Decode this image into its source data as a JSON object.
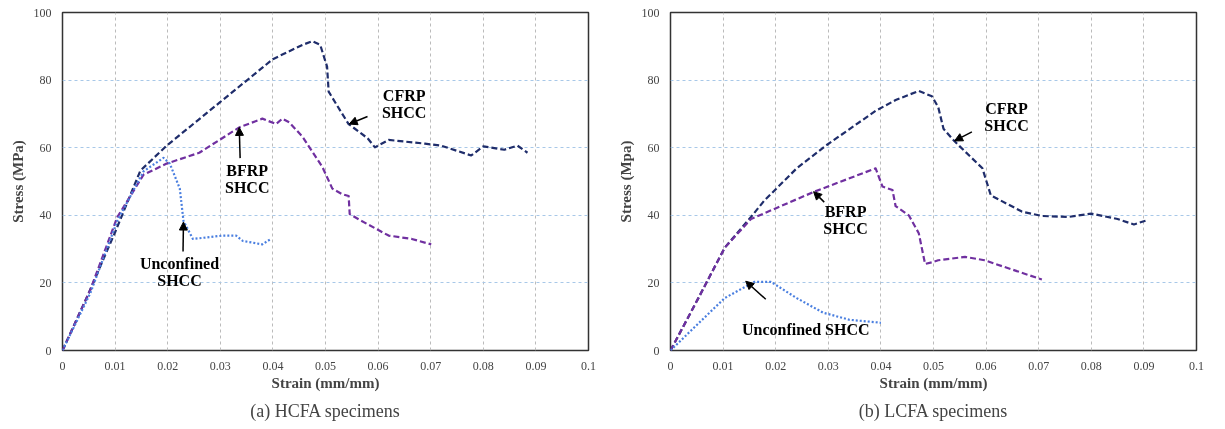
{
  "chart_data": [
    {
      "type": "line",
      "title": "(a) HCFA specimens",
      "xlabel": "Strain (mm/mm)",
      "ylabel": "Stress (MPa)",
      "xlim": [
        0,
        0.1
      ],
      "ylim": [
        0,
        100
      ],
      "xticks": [
        0,
        0.01,
        0.02,
        0.03,
        0.04,
        0.05,
        0.06,
        0.07,
        0.08,
        0.09,
        0.1
      ],
      "yticks": [
        0,
        20,
        40,
        60,
        80,
        100
      ],
      "grid": true,
      "series": [
        {
          "color": "#1f2d6b",
          "line_style": "dashed",
          "x": [
            0,
            0.005,
            0.01,
            0.0148,
            0.0198,
            0.0299,
            0.04,
            0.0456,
            0.0475,
            0.049,
            0.0503,
            0.0506,
            0.0531,
            0.0544,
            0.058,
            0.0594,
            0.062,
            0.0689,
            0.072,
            0.0777,
            0.08,
            0.084,
            0.0865,
            0.0884
          ],
          "values": [
            0,
            17,
            35,
            53.2,
            60.6,
            73.4,
            86.2,
            90.4,
            91.5,
            90.4,
            84,
            76.6,
            70.2,
            67,
            62.8,
            60.1,
            62.3,
            61.2,
            60.6,
            57.7,
            60.4,
            59.4,
            60.6,
            58.5
          ]
        },
        {
          "color": "#7030a0",
          "line_style": "dashed",
          "x": [
            0,
            0.0053,
            0.0104,
            0.0154,
            0.0198,
            0.026,
            0.0336,
            0.038,
            0.0406,
            0.0418,
            0.0431,
            0.0456,
            0.0494,
            0.0513,
            0.0531,
            0.0544,
            0.0546,
            0.0563,
            0.062,
            0.0664,
            0.0701
          ],
          "values": [
            0,
            18,
            39.4,
            52,
            55.3,
            58.5,
            66,
            68.6,
            67,
            68.6,
            67.5,
            63.3,
            54.3,
            47.9,
            46.3,
            45.7,
            40.4,
            38.8,
            34,
            33,
            31.4
          ]
        },
        {
          "color": "#4a7fe0",
          "line_style": "dotted",
          "x": [
            0,
            0.0053,
            0.0104,
            0.0154,
            0.0192,
            0.0204,
            0.0223,
            0.023,
            0.0248,
            0.0305,
            0.033,
            0.0343,
            0.038,
            0.0396
          ],
          "values": [
            0,
            17,
            38.3,
            53,
            57,
            55.3,
            47.9,
            38.3,
            33,
            34,
            34,
            32.4,
            31.4,
            33
          ]
        }
      ],
      "annotations": [
        {
          "text": "CFRP\nSHCC",
          "x": 0.0545,
          "y": 67
        },
        {
          "text": "BFRP\nSHCC",
          "x": 0.0336,
          "y": 66
        },
        {
          "text": "Unconfined\nSHCC",
          "x": 0.023,
          "y": 38
        }
      ]
    },
    {
      "type": "line",
      "title": "(b) LCFA specimens",
      "xlabel": "Strain (mm/mm)",
      "ylabel": "Stress (Mpa)",
      "xlim": [
        0,
        0.1
      ],
      "ylim": [
        0,
        100
      ],
      "xticks": [
        0,
        0.01,
        0.02,
        0.03,
        0.04,
        0.05,
        0.06,
        0.07,
        0.08,
        0.09,
        0.1
      ],
      "yticks": [
        0,
        20,
        40,
        60,
        80,
        100
      ],
      "grid": true,
      "series": [
        {
          "color": "#1f2d6b",
          "line_style": "dashed",
          "x": [
            0,
            0.0053,
            0.0103,
            0.0153,
            0.0178,
            0.024,
            0.0297,
            0.039,
            0.0428,
            0.0472,
            0.0497,
            0.0509,
            0.0519,
            0.054,
            0.0593,
            0.0609,
            0.0668,
            0.0706,
            0.0756,
            0.08,
            0.085,
            0.0881,
            0.0903
          ],
          "values": [
            0,
            15.5,
            30.4,
            39.5,
            44.3,
            53.9,
            60.8,
            70.9,
            74.1,
            76.8,
            75.2,
            72,
            65.6,
            61.9,
            53.9,
            45.9,
            41.1,
            39.8,
            39.5,
            40.5,
            38.9,
            37.3,
            38.4
          ]
        },
        {
          "color": "#7030a0",
          "line_style": "dashed",
          "x": [
            0,
            0.0053,
            0.0103,
            0.0153,
            0.0272,
            0.039,
            0.0403,
            0.0422,
            0.0428,
            0.0453,
            0.0472,
            0.0484,
            0.0497,
            0.0509,
            0.056,
            0.0597,
            0.0706
          ],
          "values": [
            0,
            15.5,
            30.4,
            38.9,
            46.9,
            53.9,
            48.5,
            47.5,
            42.7,
            40,
            34.7,
            25.6,
            26.1,
            26.7,
            27.7,
            26.7,
            21
          ]
        },
        {
          "color": "#4a7fe0",
          "line_style": "dotted",
          "x": [
            0,
            0.0053,
            0.0103,
            0.0159,
            0.0191,
            0.024,
            0.029,
            0.034,
            0.04
          ],
          "values": [
            0,
            8,
            15.5,
            20.3,
            20.3,
            15.5,
            11.2,
            9.1,
            8.2
          ]
        }
      ],
      "annotations": [
        {
          "text": "CFRP\nSHCC",
          "x": 0.054,
          "y": 62
        },
        {
          "text": "BFRP\nSHCC",
          "x": 0.0272,
          "y": 47
        },
        {
          "text": "Unconfined SHCC",
          "x": 0.0143,
          "y": 20.5
        }
      ]
    }
  ]
}
